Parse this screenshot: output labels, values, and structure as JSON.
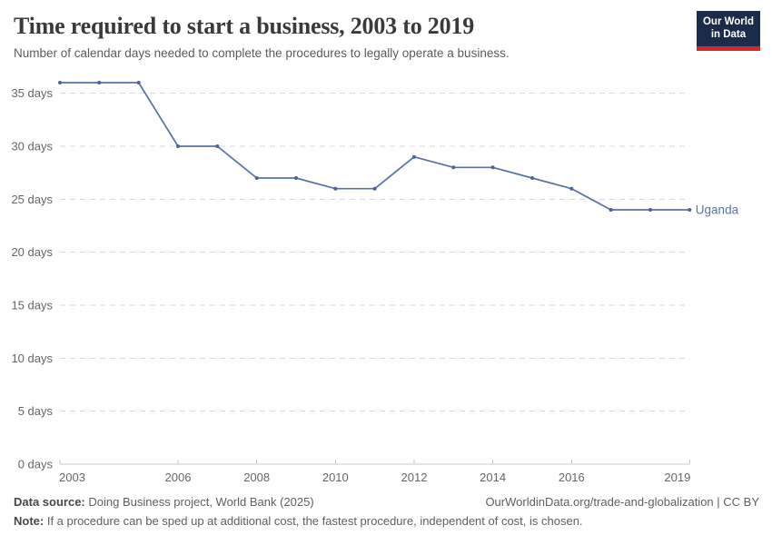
{
  "header": {
    "title": "Time required to start a business, 2003 to 2019",
    "subtitle": "Number of calendar days needed to complete the procedures to legally operate a business."
  },
  "logo": {
    "line1": "Our World",
    "line2": "in Data",
    "bg_color": "#1c2b4a",
    "stripe_color": "#d0282c"
  },
  "chart_data": {
    "type": "line",
    "title": "Time required to start a business, 2003 to 2019",
    "x": [
      2003,
      2004,
      2005,
      2006,
      2007,
      2008,
      2009,
      2010,
      2011,
      2012,
      2013,
      2014,
      2015,
      2016,
      2017,
      2018,
      2019
    ],
    "series": [
      {
        "name": "Uganda",
        "values": [
          36,
          36,
          36,
          30,
          30,
          27,
          27,
          26,
          26,
          29,
          28,
          28,
          27,
          26,
          24,
          24,
          24
        ],
        "color": "#5672ab",
        "marker_color": "#49629e"
      }
    ],
    "xlabel": "",
    "ylabel": "",
    "ylim": [
      0,
      36
    ],
    "yticks": [
      0,
      5,
      10,
      15,
      20,
      25,
      30,
      35
    ],
    "ytick_suffix": " days",
    "xticks": [
      2003,
      2006,
      2008,
      2010,
      2012,
      2014,
      2016,
      2019
    ],
    "grid": "horizontal-dashed",
    "legend": "end-of-line-label",
    "end_label": "Uganda"
  },
  "chart_style": {
    "grid_color": "#d9d9d9",
    "axis_color": "#c8c8c8",
    "tick_label_color": "#666666"
  },
  "footer": {
    "source_label": "Data source:",
    "source_text": " Doing Business project, World Bank (2025)",
    "license": "OurWorldinData.org/trade-and-globalization | CC BY",
    "note_label": "Note:",
    "note_text": " If a procedure can be sped up at additional cost, the fastest procedure, independent of cost, is chosen."
  }
}
